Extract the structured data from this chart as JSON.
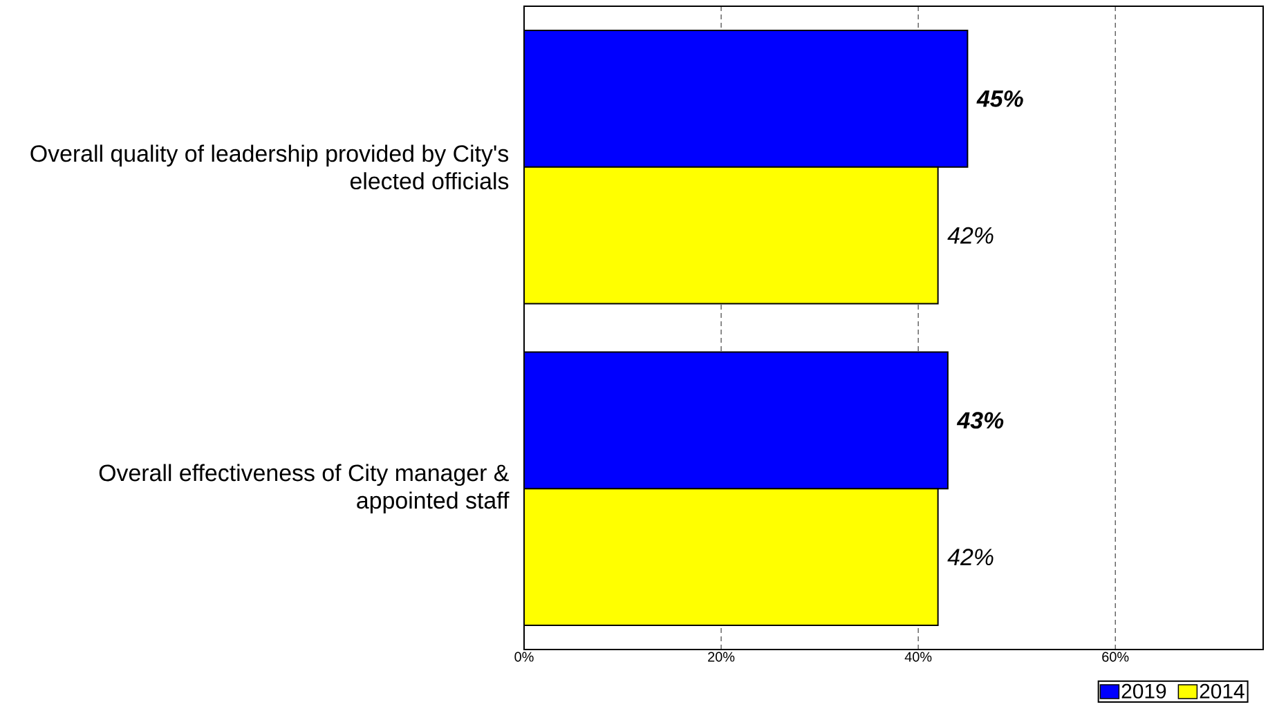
{
  "chart_data": {
    "type": "bar",
    "orientation": "horizontal",
    "categories": [
      "Overall quality of leadership provided by City's elected officials",
      "Overall effectiveness of City manager & appointed staff"
    ],
    "series": [
      {
        "name": "2019",
        "color": "#0000ff",
        "values": [
          45,
          43
        ],
        "value_labels": [
          "45%",
          "43%"
        ]
      },
      {
        "name": "2014",
        "color": "#ffff00",
        "values": [
          42,
          42
        ],
        "value_labels": [
          "42%",
          "42%"
        ]
      }
    ],
    "xlim": [
      0,
      75
    ],
    "xticks": [
      {
        "value": 0,
        "label": "0%"
      },
      {
        "value": 20,
        "label": "20%"
      },
      {
        "value": 40,
        "label": "40%"
      },
      {
        "value": 60,
        "label": "60%"
      }
    ],
    "grid": "x",
    "legend": "bottom right"
  }
}
